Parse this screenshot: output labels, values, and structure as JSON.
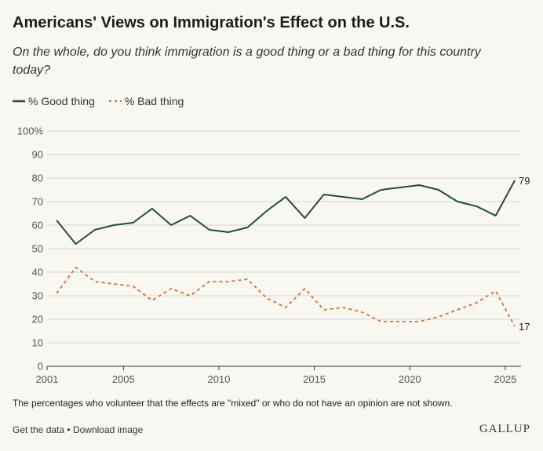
{
  "header": {
    "title": "Americans' Views on Immigration's Effect on the U.S.",
    "subtitle": "On the whole, do you think immigration is a good thing or a bad thing for this country today?"
  },
  "legend": {
    "good_label": "% Good thing",
    "bad_label": "% Bad thing"
  },
  "chart_data": {
    "type": "line",
    "title": "Americans' Views on Immigration's Effect on the U.S.",
    "subtitle": "On the whole, do you think immigration is a good thing or a bad thing for this country today?",
    "xlabel": "",
    "ylabel": "",
    "xlim": [
      2001,
      2025.5
    ],
    "ylim": [
      0,
      100
    ],
    "x_ticks": [
      2001,
      2005,
      2010,
      2015,
      2020,
      2025
    ],
    "y_ticks": [
      0,
      10,
      20,
      30,
      40,
      50,
      60,
      70,
      80,
      90,
      100
    ],
    "y_tick_labels": [
      "0",
      "10",
      "20",
      "30",
      "40",
      "50",
      "60",
      "70",
      "80",
      "90",
      "100%"
    ],
    "grid": "horizontal",
    "legend_position": "top-left",
    "series": [
      {
        "name": "% Good thing",
        "color": "#1e4d3f",
        "style": "solid",
        "end_label": "79",
        "points": [
          [
            2001.5,
            62
          ],
          [
            2002.5,
            52
          ],
          [
            2003.5,
            58
          ],
          [
            2004.5,
            60
          ],
          [
            2005.5,
            61
          ],
          [
            2006.5,
            67
          ],
          [
            2007.5,
            60
          ],
          [
            2008.5,
            64
          ],
          [
            2009.5,
            58
          ],
          [
            2010.5,
            57
          ],
          [
            2011.5,
            59
          ],
          [
            2012.5,
            66
          ],
          [
            2013.5,
            72
          ],
          [
            2014.5,
            63
          ],
          [
            2015.5,
            73
          ],
          [
            2016.5,
            72
          ],
          [
            2017.5,
            71
          ],
          [
            2018.5,
            75
          ],
          [
            2019.5,
            76
          ],
          [
            2020.5,
            77
          ],
          [
            2021.5,
            75
          ],
          [
            2022.5,
            70
          ],
          [
            2023.5,
            68
          ],
          [
            2024.5,
            64
          ],
          [
            2025.5,
            79
          ]
        ]
      },
      {
        "name": "% Bad thing",
        "color": "#d96c2c",
        "style": "dashed",
        "end_label": "17",
        "points": [
          [
            2001.5,
            31
          ],
          [
            2002.5,
            42
          ],
          [
            2003.5,
            36
          ],
          [
            2004.5,
            35
          ],
          [
            2005.5,
            34
          ],
          [
            2006.5,
            28
          ],
          [
            2007.5,
            33
          ],
          [
            2008.5,
            30
          ],
          [
            2009.5,
            36
          ],
          [
            2010.5,
            36
          ],
          [
            2011.5,
            37
          ],
          [
            2012.5,
            29
          ],
          [
            2013.5,
            25
          ],
          [
            2014.5,
            33
          ],
          [
            2015.5,
            24
          ],
          [
            2016.5,
            25
          ],
          [
            2017.5,
            23
          ],
          [
            2018.5,
            19
          ],
          [
            2019.5,
            19
          ],
          [
            2020.5,
            19
          ],
          [
            2021.5,
            21
          ],
          [
            2022.5,
            24
          ],
          [
            2023.5,
            27
          ],
          [
            2024.5,
            32
          ],
          [
            2025.5,
            17
          ]
        ]
      }
    ]
  },
  "note": "The percentages who volunteer that the effects are \"mixed\" or who do not have an opinion are not shown.",
  "footer": {
    "get_data": "Get the data",
    "separator": "•",
    "download": "Download image",
    "brand": "GALLUP"
  }
}
